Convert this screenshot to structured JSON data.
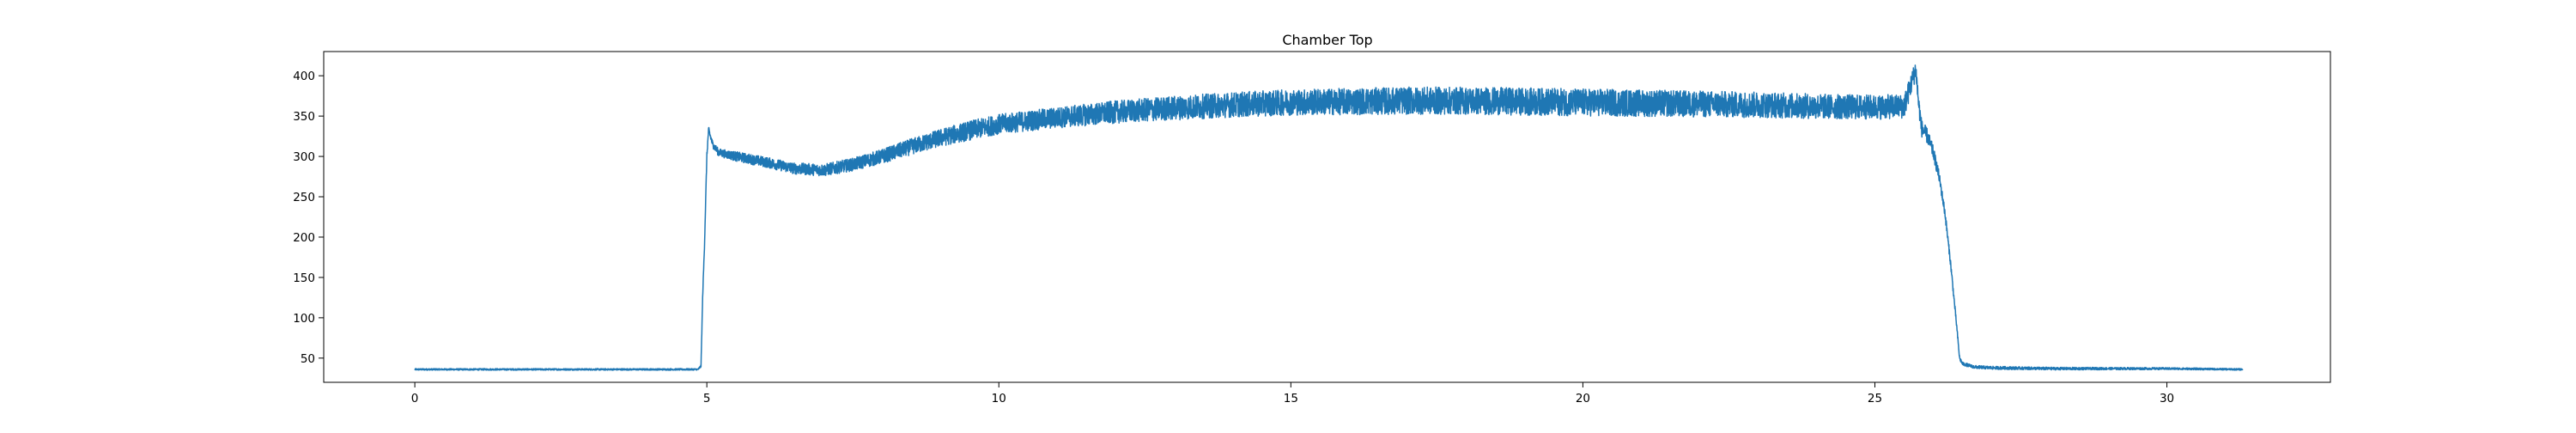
{
  "chart_data": {
    "type": "line",
    "title": "Chamber Top",
    "xlabel": "",
    "ylabel": "",
    "xlim": [
      -1.56,
      32.8
    ],
    "ylim": [
      20,
      430
    ],
    "x_ticks": [
      0,
      5,
      10,
      15,
      20,
      25,
      30
    ],
    "y_ticks": [
      50,
      100,
      150,
      200,
      250,
      300,
      350,
      400
    ],
    "grid": false,
    "legend": "none",
    "series": [
      {
        "color": "#1f77b4",
        "points": [
          [
            0.0,
            36
          ],
          [
            1.0,
            36
          ],
          [
            2.0,
            36
          ],
          [
            3.0,
            36
          ],
          [
            4.0,
            36
          ],
          [
            4.85,
            36
          ],
          [
            4.9,
            40
          ],
          [
            4.93,
            130
          ],
          [
            4.96,
            190
          ],
          [
            5.0,
            300
          ],
          [
            5.03,
            333
          ],
          [
            5.1,
            315
          ],
          [
            5.2,
            305
          ],
          [
            5.5,
            300
          ],
          [
            6.0,
            293
          ],
          [
            6.5,
            285
          ],
          [
            7.0,
            283
          ],
          [
            7.5,
            290
          ],
          [
            8.0,
            300
          ],
          [
            8.5,
            312
          ],
          [
            9.0,
            323
          ],
          [
            9.5,
            332
          ],
          [
            10.0,
            340
          ],
          [
            11.0,
            348
          ],
          [
            12.0,
            355
          ],
          [
            13.0,
            360
          ],
          [
            14.0,
            364
          ],
          [
            15.0,
            367
          ],
          [
            16.0,
            368
          ],
          [
            17.0,
            369
          ],
          [
            18.0,
            369
          ],
          [
            19.0,
            368
          ],
          [
            20.0,
            367
          ],
          [
            21.0,
            366
          ],
          [
            22.0,
            365
          ],
          [
            23.0,
            364
          ],
          [
            24.0,
            362
          ],
          [
            25.0,
            361
          ],
          [
            25.5,
            362
          ],
          [
            25.6,
            385
          ],
          [
            25.7,
            408
          ],
          [
            25.75,
            365
          ],
          [
            25.8,
            335
          ],
          [
            25.9,
            325
          ],
          [
            26.0,
            305
          ],
          [
            26.1,
            275
          ],
          [
            26.2,
            230
          ],
          [
            26.3,
            165
          ],
          [
            26.4,
            90
          ],
          [
            26.45,
            50
          ],
          [
            26.5,
            43
          ],
          [
            26.7,
            39
          ],
          [
            27.0,
            38
          ],
          [
            28.0,
            37
          ],
          [
            29.0,
            37
          ],
          [
            30.0,
            37
          ],
          [
            31.3,
            36
          ]
        ],
        "noise_band": [
          [
            0.0,
            1
          ],
          [
            4.85,
            1
          ],
          [
            5.0,
            4
          ],
          [
            5.5,
            6
          ],
          [
            6.5,
            7
          ],
          [
            7.5,
            8
          ],
          [
            8.5,
            10
          ],
          [
            9.5,
            12
          ],
          [
            11.0,
            13
          ],
          [
            13.0,
            15
          ],
          [
            15.0,
            16
          ],
          [
            17.0,
            17
          ],
          [
            20.0,
            17
          ],
          [
            23.0,
            16
          ],
          [
            25.5,
            15
          ],
          [
            26.0,
            8
          ],
          [
            26.5,
            2
          ],
          [
            31.3,
            1
          ]
        ]
      }
    ]
  }
}
